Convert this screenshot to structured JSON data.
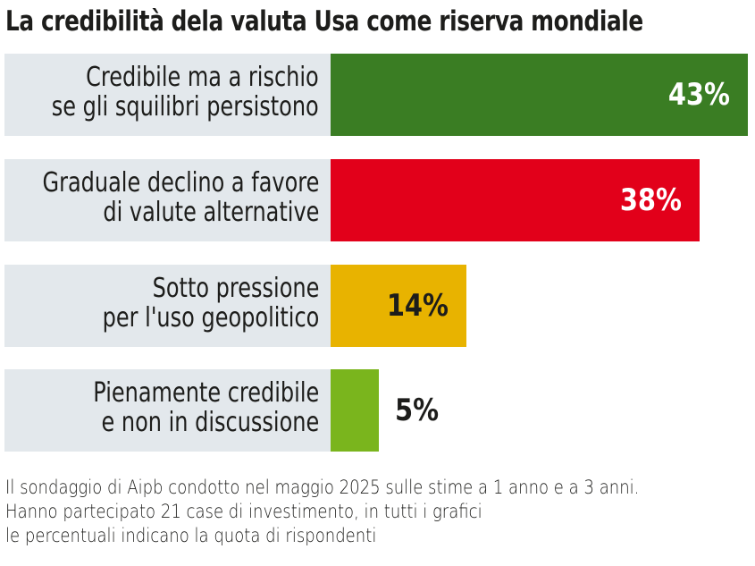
{
  "chart_data": {
    "type": "bar",
    "orientation": "horizontal",
    "title": "La credibilità dela valuta Usa come riserva mondiale",
    "categories": [
      [
        "Credibile ma a rischio",
        "se gli squilibri persistono"
      ],
      [
        "Graduale declino a favore",
        "di valute alternative"
      ],
      [
        "Sotto pressione",
        "per l'uso geopolitico"
      ],
      [
        "Pienamente credibile",
        "e non in discussione"
      ]
    ],
    "values": [
      43,
      38,
      14,
      5
    ],
    "value_labels": [
      "43%",
      "38%",
      "14%",
      "5%"
    ],
    "colors": [
      "#3a7d23",
      "#e2001a",
      "#e8b300",
      "#7ab51d"
    ],
    "label_colors": [
      "#ffffff",
      "#ffffff",
      "#1d1d1b",
      "#1d1d1b"
    ],
    "xlim": [
      0,
      43
    ],
    "unit": "%",
    "grid": false,
    "legend": "none"
  },
  "footnote": [
    "Il sondaggio di Aipb condotto nel maggio 2025 sulle stime a 1 anno e a 3 anni.",
    "Hanno partecipato 21 case di investimento, in tutti i grafici",
    "le percentuali indicano la quota di rispondenti"
  ]
}
